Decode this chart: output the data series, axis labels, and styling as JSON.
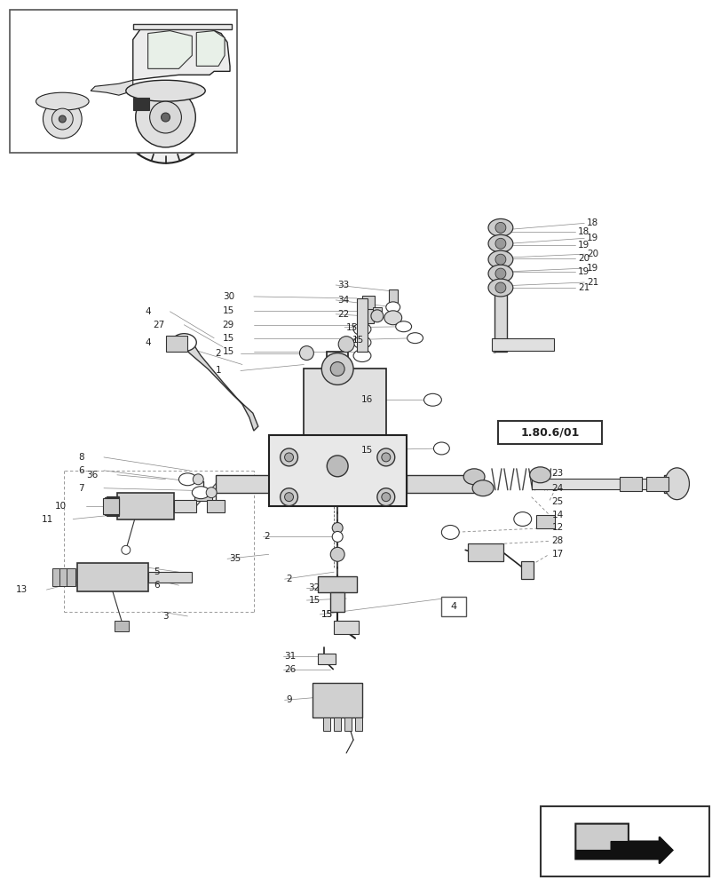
{
  "bg_color": "#ffffff",
  "line_color": "#222222",
  "title": "1.80.6/01",
  "fig_width": 8.12,
  "fig_height": 10.0,
  "dpi": 100
}
